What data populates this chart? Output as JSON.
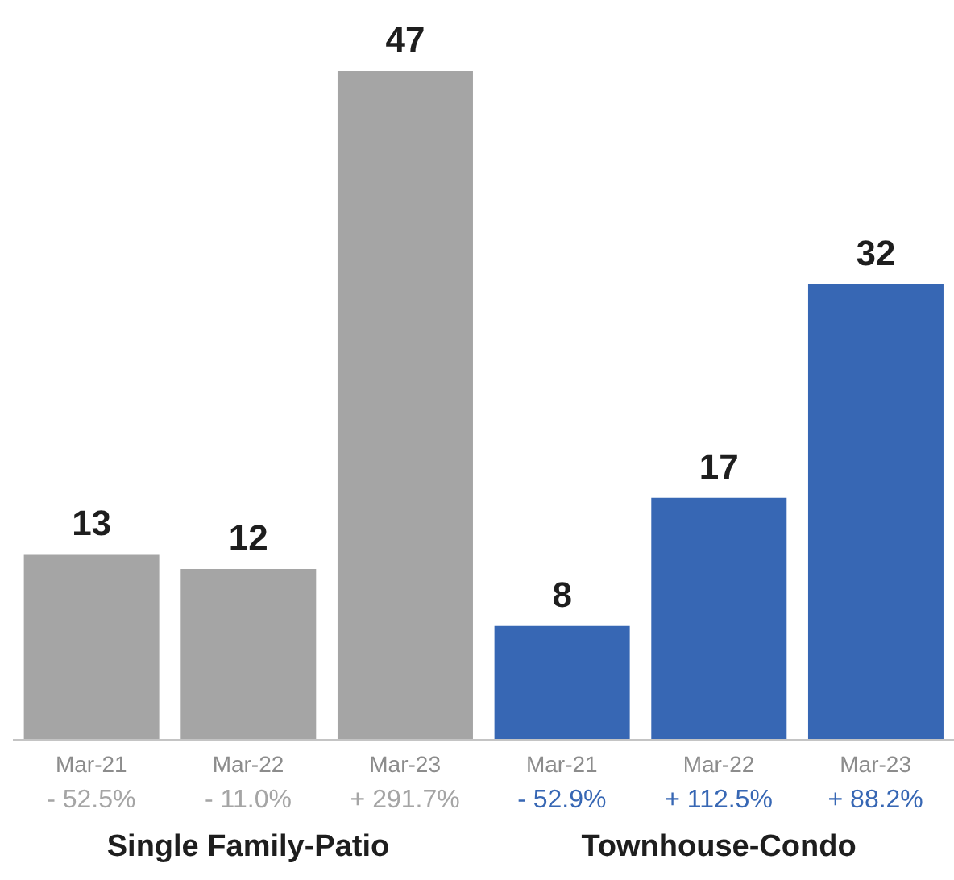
{
  "chart_data": [
    {
      "type": "bar",
      "xlabel": "Single Family-Patio",
      "categories": [
        "Mar-21",
        "Mar-22",
        "Mar-23"
      ],
      "values": [
        13,
        12,
        47
      ],
      "color": "#a5a5a5",
      "data_labels": true,
      "annotations": [
        "- 52.5%",
        "- 11.0%",
        "+ 291.7%"
      ]
    },
    {
      "type": "bar",
      "xlabel": "Townhouse-Condo",
      "categories": [
        "Mar-21",
        "Mar-22",
        "Mar-23"
      ],
      "values": [
        8,
        17,
        32
      ],
      "color": "#3767b4",
      "data_labels": true,
      "annotations": [
        "- 52.9%",
        "+ 112.5%",
        "+ 88.2%"
      ]
    }
  ]
}
